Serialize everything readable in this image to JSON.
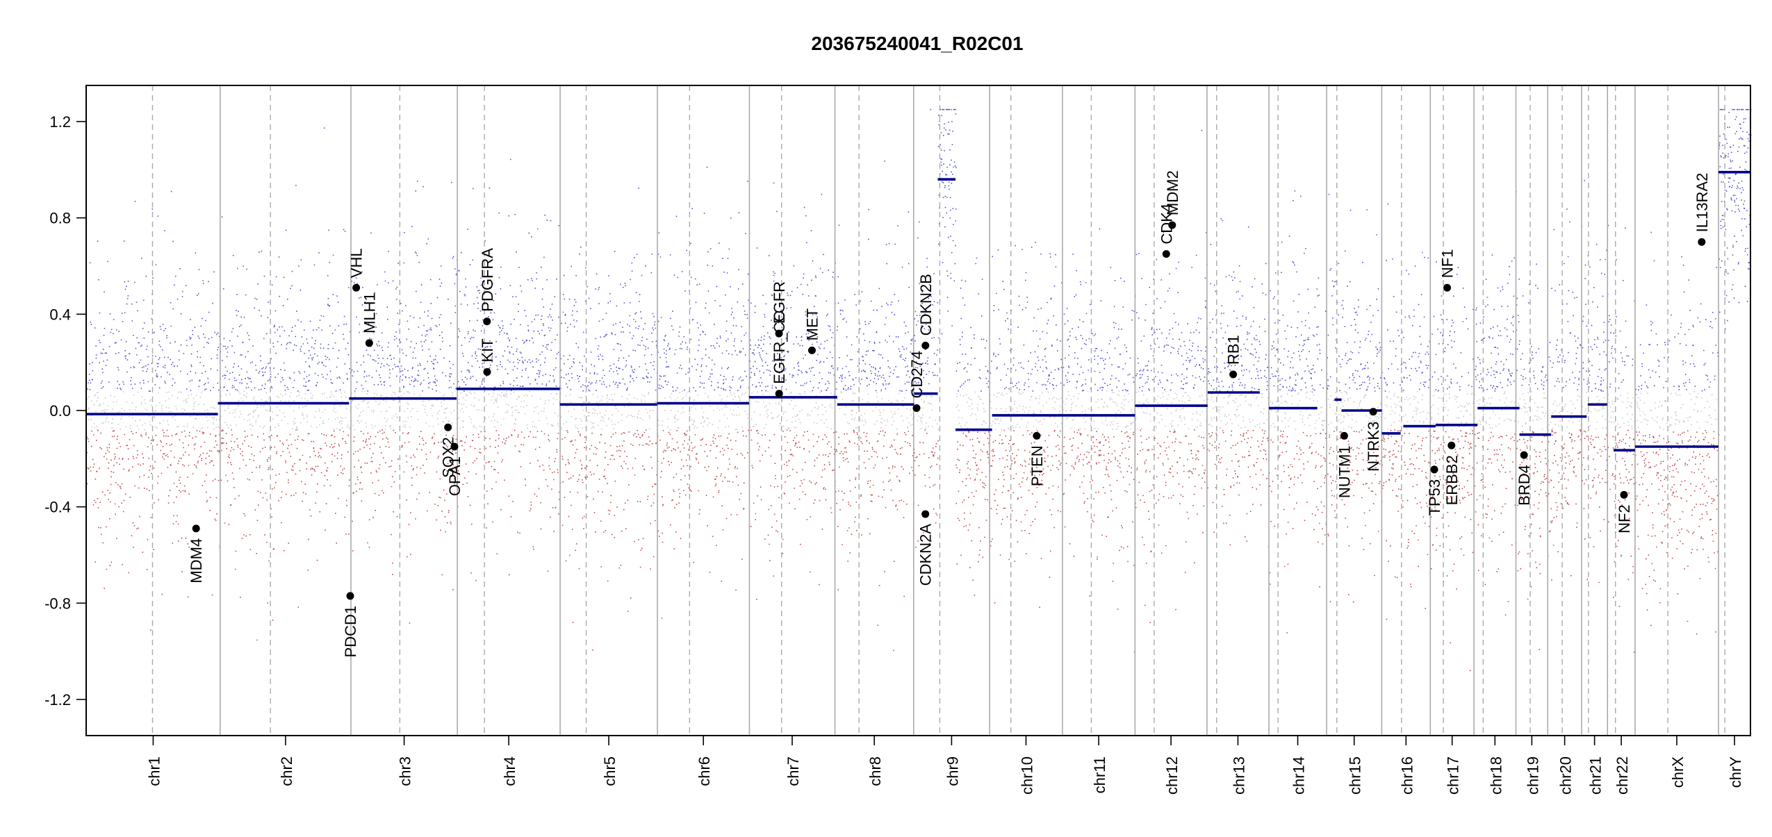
{
  "chart_data": {
    "type": "scatter",
    "title": "203675240041_R02C01",
    "xlabel": "",
    "ylabel": "",
    "ylim": [
      -1.35,
      1.35
    ],
    "yticks": [
      -1.2,
      -0.8,
      -0.4,
      0.0,
      0.4,
      0.8,
      1.2
    ],
    "ytick_labels": [
      "-1.2",
      "-0.8",
      "-0.4",
      "0.0",
      "0.4",
      "0.8",
      "1.2"
    ],
    "grid": false,
    "legend": "none",
    "chromosomes": [
      {
        "label": "chr1",
        "start": 0.0,
        "end": 249.25,
        "centromere": 123.4
      },
      {
        "label": "chr2",
        "start": 249.25,
        "end": 492.44,
        "centromere": 342.7
      },
      {
        "label": "chr3",
        "start": 492.44,
        "end": 690.46,
        "centromere": 583.4
      },
      {
        "label": "chr4",
        "start": 690.46,
        "end": 881.61,
        "centromere": 740.8
      },
      {
        "label": "chr5",
        "start": 881.61,
        "end": 1062.53,
        "centromere": 930.1
      },
      {
        "label": "chr6",
        "start": 1062.53,
        "end": 1233.65,
        "centromere": 1122.4
      },
      {
        "label": "chr7",
        "start": 1233.65,
        "end": 1392.79,
        "centromere": 1293.5
      },
      {
        "label": "chr8",
        "start": 1392.79,
        "end": 1539.15,
        "centromere": 1437.6
      },
      {
        "label": "chr9",
        "start": 1539.15,
        "end": 1680.36,
        "centromere": 1587.8
      },
      {
        "label": "chr10",
        "start": 1680.36,
        "end": 1815.9,
        "centromere": 1720.0
      },
      {
        "label": "chr11",
        "start": 1815.9,
        "end": 1950.91,
        "centromere": 1869.6
      },
      {
        "label": "chr12",
        "start": 1950.91,
        "end": 2084.76,
        "centromere": 1986.5
      },
      {
        "label": "chr13",
        "start": 2084.76,
        "end": 2199.93,
        "centromere": 2102.7
      },
      {
        "label": "chr14",
        "start": 2199.93,
        "end": 2307.28,
        "centromere": 2216.9
      },
      {
        "label": "chr15",
        "start": 2307.28,
        "end": 2409.81,
        "centromere": 2326.3
      },
      {
        "label": "chr16",
        "start": 2409.81,
        "end": 2500.16,
        "centromere": 2446.6
      },
      {
        "label": "chr17",
        "start": 2500.16,
        "end": 2581.36,
        "centromere": 2524.5
      },
      {
        "label": "chr18",
        "start": 2581.36,
        "end": 2659.44,
        "centromere": 2598.5
      },
      {
        "label": "chr19",
        "start": 2659.44,
        "end": 2718.57,
        "centromere": 2685.9
      },
      {
        "label": "chr20",
        "start": 2718.57,
        "end": 2781.59,
        "centromere": 2745.5
      },
      {
        "label": "chr21",
        "start": 2781.59,
        "end": 2829.72,
        "centromere": 2794.3
      },
      {
        "label": "chr22",
        "start": 2829.72,
        "end": 2881.03,
        "centromere": 2844.6
      },
      {
        "label": "chrX",
        "start": 2881.03,
        "end": 3036.3,
        "centromere": 2942.0
      },
      {
        "label": "chrY",
        "start": 3036.3,
        "end": 3095.67,
        "centromere": 3048.0
      }
    ],
    "segments": [
      {
        "x0": 0.0,
        "x1": 245.0,
        "y": -0.015
      },
      {
        "x0": 245.0,
        "x1": 489.0,
        "y": 0.03
      },
      {
        "x0": 489.0,
        "x1": 689.0,
        "y": 0.05
      },
      {
        "x0": 689.0,
        "x1": 881.0,
        "y": 0.09
      },
      {
        "x0": 881.0,
        "x1": 1062.0,
        "y": 0.025
      },
      {
        "x0": 1062.0,
        "x1": 1233.0,
        "y": 0.03
      },
      {
        "x0": 1233.0,
        "x1": 1397.0,
        "y": 0.055
      },
      {
        "x0": 1397.0,
        "x1": 1540.0,
        "y": 0.025
      },
      {
        "x0": 1540.0,
        "x1": 1584.0,
        "y": 0.07
      },
      {
        "x0": 1584.0,
        "x1": 1617.0,
        "y": 0.96
      },
      {
        "x0": 1617.0,
        "x1": 1685.0,
        "y": -0.08
      },
      {
        "x0": 1685.0,
        "x1": 1816.0,
        "y": -0.02
      },
      {
        "x0": 1816.0,
        "x1": 1951.0,
        "y": -0.02
      },
      {
        "x0": 1951.0,
        "x1": 2086.0,
        "y": 0.02
      },
      {
        "x0": 2086.0,
        "x1": 2183.0,
        "y": 0.075
      },
      {
        "x0": 2200.0,
        "x1": 2290.0,
        "y": 0.01
      },
      {
        "x0": 2322.0,
        "x1": 2335.0,
        "y": 0.045
      },
      {
        "x0": 2335.0,
        "x1": 2410.0,
        "y": 0.0
      },
      {
        "x0": 2410.0,
        "x1": 2445.0,
        "y": -0.095
      },
      {
        "x0": 2450.0,
        "x1": 2510.0,
        "y": -0.065
      },
      {
        "x0": 2510.0,
        "x1": 2588.0,
        "y": -0.06
      },
      {
        "x0": 2588.0,
        "x1": 2666.0,
        "y": 0.01
      },
      {
        "x0": 2666.0,
        "x1": 2725.0,
        "y": -0.1
      },
      {
        "x0": 2725.0,
        "x1": 2791.0,
        "y": -0.025
      },
      {
        "x0": 2793.0,
        "x1": 2829.0,
        "y": 0.025
      },
      {
        "x0": 2841.0,
        "x1": 2881.0,
        "y": -0.165
      },
      {
        "x0": 2881.0,
        "x1": 3036.0,
        "y": -0.15
      },
      {
        "x0": 3036.0,
        "x1": 3096.0,
        "y": 0.99
      }
    ],
    "genes": [
      {
        "label": "MDM4",
        "x": 204.5,
        "y": -0.49,
        "side": "below"
      },
      {
        "label": "PDCD1",
        "x": 491.2,
        "y": -0.77,
        "side": "below"
      },
      {
        "label": "VHL",
        "x": 502.3,
        "y": 0.51,
        "side": "above"
      },
      {
        "label": "MLH1",
        "x": 526.5,
        "y": 0.28,
        "side": "above"
      },
      {
        "label": "SOX2",
        "x": 673.0,
        "y": -0.07,
        "side": "below"
      },
      {
        "label": "OPA1",
        "x": 685.0,
        "y": -0.15,
        "side": "below"
      },
      {
        "label": "KIT",
        "x": 745.8,
        "y": 0.16,
        "side": "above"
      },
      {
        "label": "PDGFRA",
        "x": 745.5,
        "y": 0.37,
        "side": "above"
      },
      {
        "label": "EGFR",
        "x": 1288.7,
        "y": 0.32,
        "side": "above"
      },
      {
        "label": "EGFR_CC",
        "x": 1288.9,
        "y": 0.07,
        "side": "above"
      },
      {
        "label": "MET",
        "x": 1350.0,
        "y": 0.25,
        "side": "above"
      },
      {
        "label": "CD274",
        "x": 1544.6,
        "y": 0.01,
        "side": "above"
      },
      {
        "label": "CDKN2B",
        "x": 1561.1,
        "y": 0.27,
        "side": "above"
      },
      {
        "label": "CDKN2A",
        "x": 1561.0,
        "y": -0.43,
        "side": "below"
      },
      {
        "label": "PTEN",
        "x": 1768.0,
        "y": -0.105,
        "side": "below"
      },
      {
        "label": "CDK4",
        "x": 2009.0,
        "y": 0.65,
        "side": "above"
      },
      {
        "label": "MDM2",
        "x": 2020.0,
        "y": 0.77,
        "side": "above"
      },
      {
        "label": "RB1",
        "x": 2133.5,
        "y": 0.15,
        "side": "above"
      },
      {
        "label": "NUTM1",
        "x": 2340.0,
        "y": -0.105,
        "side": "below"
      },
      {
        "label": "NTRK3",
        "x": 2394.0,
        "y": -0.005,
        "side": "below"
      },
      {
        "label": "TP53",
        "x": 2507.6,
        "y": -0.245,
        "side": "below"
      },
      {
        "label": "ERBB2",
        "x": 2539.6,
        "y": -0.145,
        "side": "below"
      },
      {
        "label": "NF1",
        "x": 2531.5,
        "y": 0.51,
        "side": "above"
      },
      {
        "label": "BRD4",
        "x": 2674.5,
        "y": -0.185,
        "side": "below"
      },
      {
        "label": "NF2",
        "x": 2860.4,
        "y": -0.35,
        "side": "below"
      },
      {
        "label": "IL13RA2",
        "x": 3005.0,
        "y": 0.7,
        "side": "above"
      }
    ],
    "colors": {
      "gain": "#1f1fbf",
      "neutral": "#b4b4b4",
      "loss": "#b22222",
      "segment": "#00008b",
      "gene": "#000000",
      "chrom_boundary": "#aaaaaa",
      "centromere": "#aaaaaa"
    },
    "density_profile": {
      "noise_sd": 0.3,
      "points_per_mb": 3.2
    }
  }
}
